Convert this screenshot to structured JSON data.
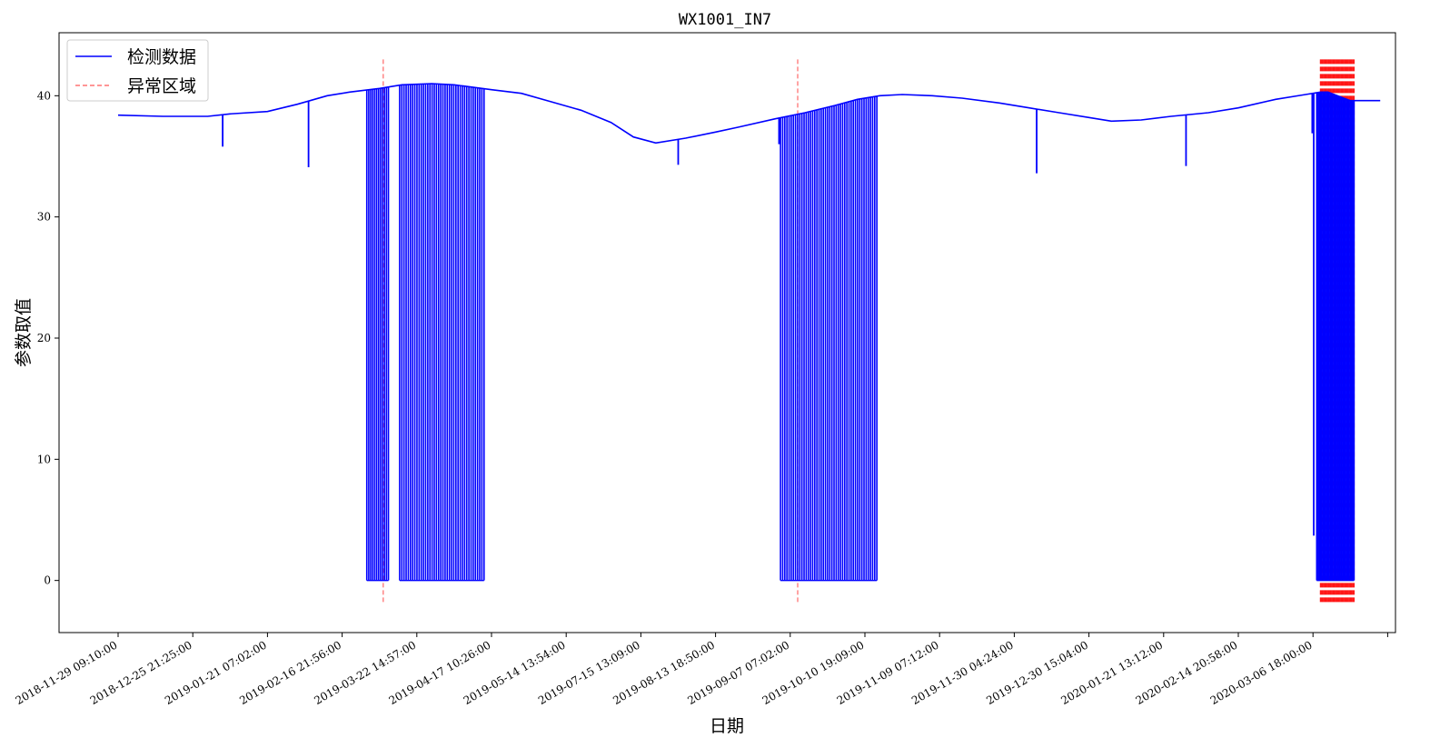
{
  "chart_data": {
    "type": "line",
    "title": "WX1001_IN7",
    "xlabel": "日期",
    "ylabel": "参数取值",
    "ylim": [
      -4.3,
      45.2
    ],
    "yticks": [
      0,
      10,
      20,
      30,
      40
    ],
    "grid": false,
    "legend_position": "top-left",
    "xtick_labels": [
      "2018-11-29 09:10:00",
      "2018-12-25 21:25:00",
      "2019-01-21 07:02:00",
      "2019-02-16 21:56:00",
      "2019-03-22 14:57:00",
      "2019-04-17 10:26:00",
      "2019-05-14 13:54:00",
      "2019-07-15 13:09:00",
      "2019-08-13 18:50:00",
      "2019-09-07 07:02:00",
      "2019-10-10 19:09:00",
      "2019-11-09 07:12:00",
      "2019-11-30 04:24:00",
      "2019-12-30 15:04:00",
      "2020-01-21 13:12:00",
      "2020-02-14 20:58:00",
      "2020-03-06 18:00:00"
    ],
    "series": [
      {
        "name": "检测数据",
        "color": "#0000ff",
        "style": "solid",
        "baseline": [
          [
            0.0,
            38.4
          ],
          [
            0.6,
            38.3
          ],
          [
            1.2,
            38.3
          ],
          [
            1.5,
            38.5
          ],
          [
            2.0,
            38.7
          ],
          [
            2.4,
            39.3
          ],
          [
            2.8,
            40.0
          ],
          [
            3.1,
            40.3
          ],
          [
            3.5,
            40.6
          ],
          [
            3.8,
            40.9
          ],
          [
            4.2,
            41.0
          ],
          [
            4.5,
            40.9
          ],
          [
            5.0,
            40.5
          ],
          [
            5.4,
            40.2
          ],
          [
            5.8,
            39.5
          ],
          [
            6.2,
            38.8
          ],
          [
            6.6,
            37.8
          ],
          [
            6.9,
            36.6
          ],
          [
            7.2,
            36.1
          ],
          [
            7.6,
            36.5
          ],
          [
            8.0,
            37.0
          ],
          [
            8.3,
            37.4
          ],
          [
            8.8,
            38.1
          ],
          [
            9.2,
            38.6
          ],
          [
            9.6,
            39.2
          ],
          [
            9.9,
            39.7
          ],
          [
            10.2,
            40.0
          ],
          [
            10.5,
            40.1
          ],
          [
            10.9,
            40.0
          ],
          [
            11.3,
            39.8
          ],
          [
            11.8,
            39.4
          ],
          [
            12.2,
            39.0
          ],
          [
            12.6,
            38.6
          ],
          [
            13.0,
            38.2
          ],
          [
            13.3,
            37.9
          ],
          [
            13.7,
            38.0
          ],
          [
            14.1,
            38.3
          ],
          [
            14.6,
            38.6
          ],
          [
            15.0,
            39.0
          ],
          [
            15.5,
            39.7
          ],
          [
            15.9,
            40.1
          ],
          [
            16.1,
            40.3
          ],
          [
            16.2,
            40.3
          ],
          [
            16.5,
            39.6
          ],
          [
            16.8,
            39.6
          ],
          [
            16.9,
            39.6
          ]
        ],
        "spikes": [
          {
            "x": 1.4,
            "low": 35.8
          },
          {
            "x": 2.55,
            "low": 34.1
          },
          {
            "x": 7.5,
            "low": 34.3
          },
          {
            "x": 8.85,
            "low": 36.0
          },
          {
            "x": 12.3,
            "low": 33.6
          },
          {
            "x": 14.3,
            "low": 34.2
          },
          {
            "x": 15.99,
            "low": 36.9
          },
          {
            "x": 16.01,
            "low": 3.7
          }
        ],
        "zero_dropout_bands": [
          {
            "start": 3.33,
            "end": 3.62,
            "count": 12
          },
          {
            "start": 3.77,
            "end": 4.9,
            "count": 40
          },
          {
            "start": 8.87,
            "end": 10.16,
            "count": 46
          },
          {
            "start": 16.05,
            "end": 16.55,
            "count": 32
          }
        ]
      },
      {
        "name": "异常区域",
        "color": "#ff0000",
        "style": "dashed",
        "range": [
          -2.0,
          43.0
        ],
        "isolated_x": [
          3.55,
          9.1
        ],
        "dense_band": {
          "start": 16.1,
          "end": 16.55,
          "count": 34
        }
      }
    ]
  }
}
